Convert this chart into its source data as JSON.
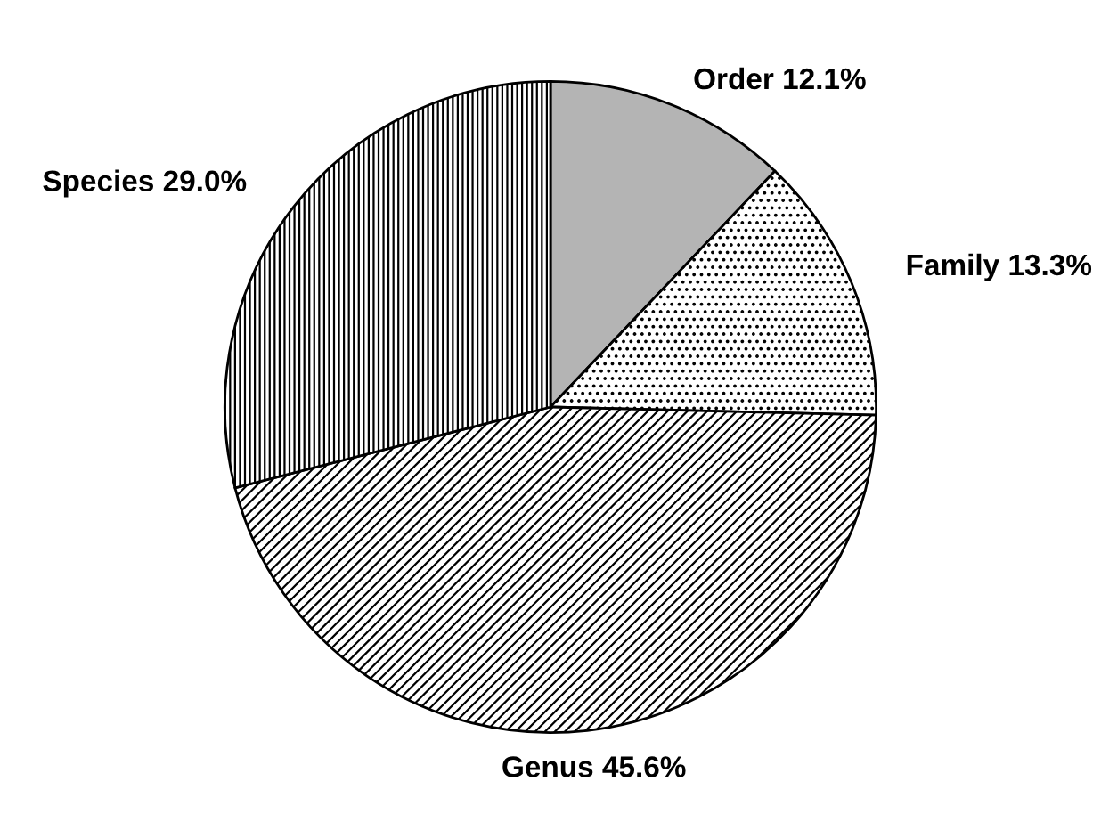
{
  "chart_data": {
    "type": "pie",
    "categories": [
      "Order",
      "Family",
      "Genus",
      "Species"
    ],
    "values": [
      12.1,
      13.3,
      45.6,
      29.0
    ],
    "value_labels": [
      "12.1%",
      "13.3%",
      "45.6%",
      "29.0%"
    ],
    "colors": [
      "#b4b4b4",
      "#ffffff",
      "#ffffff",
      "#ffffff"
    ],
    "legend": false
  }
}
